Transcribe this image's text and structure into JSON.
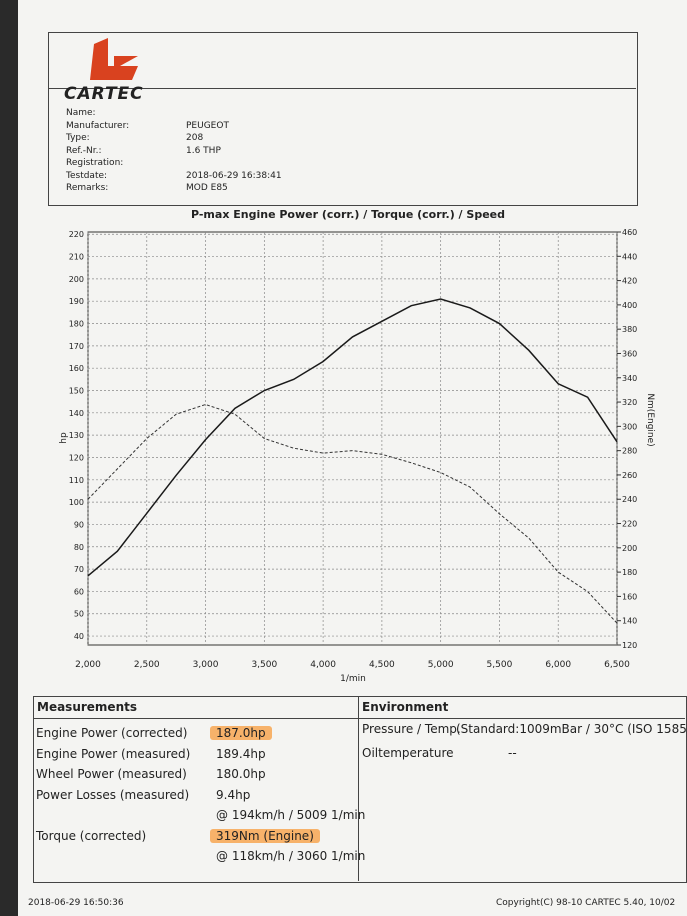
{
  "header": {
    "logo": "CARTEC"
  },
  "info": {
    "rows": [
      {
        "label": "Name:"
      },
      {
        "label": "Manufacturer:",
        "value": "PEUGEOT"
      },
      {
        "label": "Type:",
        "value": "208"
      },
      {
        "label": "Ref.-Nr.:",
        "value": "1.6 THP"
      },
      {
        "label": "Registration:"
      },
      {
        "label": "Testdate:",
        "value": "2018-06-29 16:38:41"
      },
      {
        "label": "Remarks:",
        "value": "MOD E85"
      }
    ]
  },
  "chart_data": {
    "type": "line",
    "title": "P-max Engine Power (corr.) / Torque (corr.) / Speed",
    "x_label": "1/min",
    "y_label": "hp",
    "y2_label": "Nm(Engine)",
    "x": [
      2000,
      2250,
      2500,
      2750,
      3000,
      3250,
      3500,
      3750,
      4000,
      4250,
      4500,
      4750,
      5000,
      5250,
      5500,
      5750,
      6000,
      6250,
      6500
    ],
    "series": [
      {
        "color": "#1a1a1a",
        "dash": false,
        "values": [
          67,
          78,
          95,
          112,
          128,
          142,
          150,
          155,
          163,
          174,
          181,
          188,
          191,
          187,
          180,
          168,
          153,
          147,
          127
        ]
      },
      {
        "color": "#333333",
        "dash": true,
        "axis": "y2",
        "values": [
          240,
          265,
          290,
          310,
          318,
          310,
          290,
          282,
          278,
          280,
          277,
          270,
          262,
          250,
          228,
          208,
          180,
          164,
          138
        ]
      }
    ],
    "xlim": [
      2000,
      6500
    ],
    "xticks": [
      {
        "value": 2000,
        "label": "2,000"
      },
      {
        "value": 2500,
        "label": "2,500"
      },
      {
        "value": 3000,
        "label": "3,000"
      },
      {
        "value": 3500,
        "label": "3,500"
      },
      {
        "value": 4000,
        "label": "4,000"
      },
      {
        "value": 4500,
        "label": "4,500"
      },
      {
        "value": 5000,
        "label": "5,000"
      },
      {
        "value": 5500,
        "label": "5,500"
      },
      {
        "value": 6000,
        "label": "6,000"
      },
      {
        "value": 6500,
        "label": "6,500"
      }
    ],
    "ylim": [
      36,
      221
    ],
    "yticks": [
      40,
      50,
      60,
      70,
      80,
      90,
      100,
      110,
      120,
      130,
      140,
      150,
      160,
      170,
      180,
      190,
      200,
      210,
      220
    ],
    "y2lim": [
      120,
      460
    ],
    "y2ticks": [
      120,
      140,
      160,
      180,
      200,
      220,
      240,
      260,
      280,
      300,
      320,
      340,
      360,
      380,
      400,
      420,
      440,
      460
    ],
    "grid": true
  },
  "measurements": {
    "title": "Measurements",
    "rows": [
      {
        "label": "Engine Power (corrected)",
        "value": "187.0hp",
        "highlight": true
      },
      {
        "label": "Engine Power (measured)",
        "value": "189.4hp"
      },
      {
        "label": "Wheel Power (measured)",
        "value": "180.0hp"
      },
      {
        "label": "Power Losses (measured)",
        "value": "9.4hp"
      },
      {
        "value": "@ 194km/h / 5009 1/min"
      },
      {
        "label": "Torque (corrected)",
        "value": "319Nm (Engine)",
        "highlight": true
      },
      {
        "value": "@ 118km/h / 3060 1/min"
      }
    ]
  },
  "environment": {
    "title": "Environment",
    "rows": [
      {
        "label": "Pressure / Temp.",
        "value": "(Standard:1009mBar / 30°C  (ISO 1585)"
      },
      {
        "label": "Oiltemperature",
        "value": "--"
      }
    ]
  },
  "footer": {
    "left": "2018-06-29 16:50:36",
    "right": "Copyright(C) 98-10 CARTEC 5.40, 10/02"
  }
}
